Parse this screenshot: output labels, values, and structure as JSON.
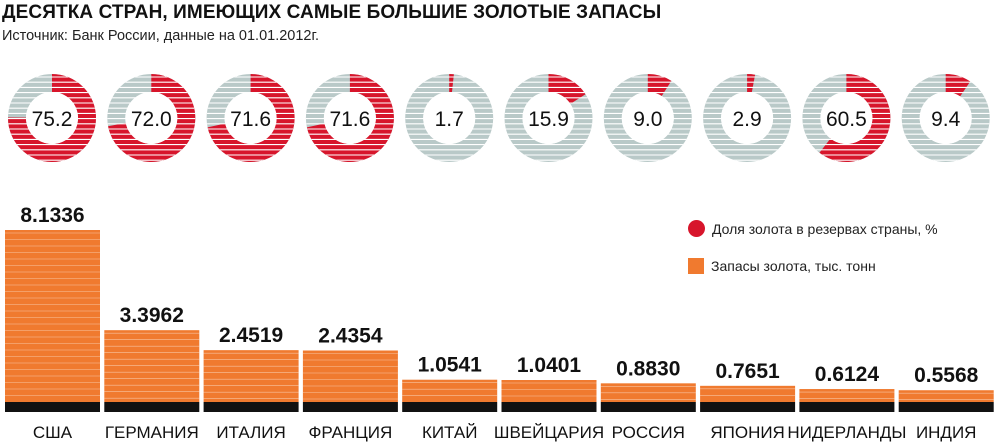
{
  "title": "ДЕСЯТКА СТРАН, ИМЕЮЩИХ САМЫЕ БОЛЬШИЕ ЗОЛОТЫЕ ЗАПАСЫ",
  "subtitle": "Источник: Банк России, данные на 01.01.2012г.",
  "legend": {
    "share_label": "Доля золота в резервах страны, %",
    "reserves_label": "Запасы золота, тыс. тонн"
  },
  "colors": {
    "bar": "#f07a2f",
    "base": "#111111",
    "donut_fill": "#d7152b",
    "donut_rest": "#b9c9c8",
    "stripe": "#ffffff"
  },
  "chart_data": [
    {
      "type": "bar",
      "categories": [
        "США",
        "ГЕРМАНИЯ",
        "ИТАЛИЯ",
        "ФРАНЦИЯ",
        "КИТАЙ",
        "ШВЕЙЦАРИЯ",
        "РОССИЯ",
        "ЯПОНИЯ",
        "НИДЕРЛАНДЫ",
        "ИНДИЯ"
      ],
      "values": [
        8.1336,
        3.3962,
        2.4519,
        2.4354,
        1.0541,
        1.0401,
        0.883,
        0.7651,
        0.6124,
        0.5568
      ],
      "value_labels": [
        "8.1336",
        "3.3962",
        "2.4519",
        "2.4354",
        "1.0541",
        "1.0401",
        "0.8830",
        "0.7651",
        "0.6124",
        "0.5568"
      ],
      "ylabel": "Запасы золота, тыс. тонн"
    },
    {
      "type": "pie",
      "style": "donut",
      "categories": [
        "США",
        "ГЕРМАНИЯ",
        "ИТАЛИЯ",
        "ФРАНЦИЯ",
        "КИТАЙ",
        "ШВЕЙЦАРИЯ",
        "РОССИЯ",
        "ЯПОНИЯ",
        "НИДЕРЛАНДЫ",
        "ИНДИЯ"
      ],
      "values": [
        75.2,
        72.0,
        71.6,
        71.6,
        1.7,
        15.9,
        9.0,
        2.9,
        60.5,
        9.4
      ],
      "value_labels": [
        "75.2",
        "72.0",
        "71.6",
        "71.6",
        "1.7",
        "15.9",
        "9.0",
        "2.9",
        "60.5",
        "9.4"
      ],
      "ylabel": "Доля золота в резервах страны, %"
    }
  ]
}
